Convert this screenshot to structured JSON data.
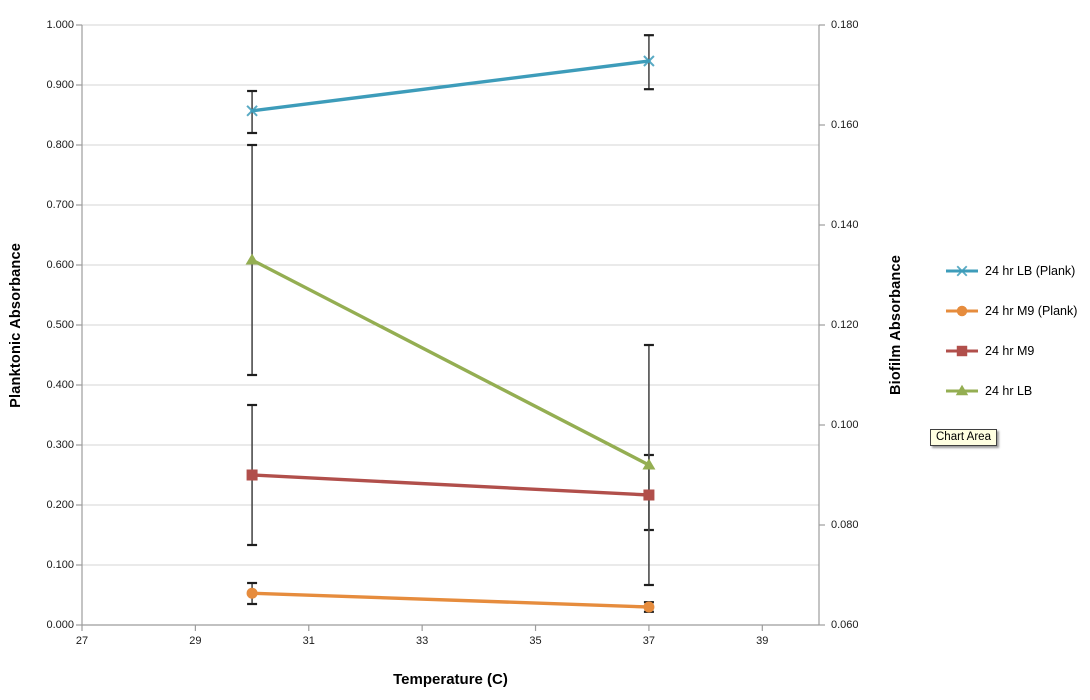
{
  "chart_data": {
    "type": "line",
    "x": [
      30,
      37
    ],
    "x_axis": {
      "label": "Temperature (C)",
      "min": 27,
      "max": 40,
      "tick_min": 27,
      "tick_max": 39,
      "tick_step": 2,
      "decimals": 0
    },
    "left_axis": {
      "label": "Planktonic Absorbance",
      "min": 0.0,
      "max": 1.0,
      "tick_step": 0.1,
      "decimals": 3
    },
    "right_axis": {
      "label": "Biofilm Absorbance",
      "min": 0.06,
      "max": 0.18,
      "tick_step": 0.02,
      "decimals": 3
    },
    "grid": "horizontal-only",
    "legend_position": "right",
    "series": [
      {
        "name": "24 hr LB (Plank)",
        "axis": "left",
        "marker": "x",
        "color": "#3d9cba",
        "values": [
          0.857,
          0.94
        ],
        "err_upper": [
          0.89,
          0.983
        ],
        "err_lower": [
          0.82,
          0.893
        ]
      },
      {
        "name": "24 hr M9 (Plank)",
        "axis": "left",
        "marker": "circle",
        "color": "#e68c3d",
        "values": [
          0.053,
          0.03
        ],
        "err_upper": [
          0.07,
          0.038
        ],
        "err_lower": [
          0.035,
          0.022
        ]
      },
      {
        "name": "24 hr M9",
        "axis": "right",
        "marker": "square",
        "color": "#b14f4b",
        "values": [
          0.09,
          0.086
        ],
        "err_upper": [
          0.104,
          0.094
        ],
        "err_lower": [
          0.076,
          0.079
        ]
      },
      {
        "name": "24 hr LB",
        "axis": "right",
        "marker": "triangle",
        "color": "#94ae52",
        "values": [
          0.133,
          0.092
        ],
        "err_upper": [
          0.156,
          0.116
        ],
        "err_lower": [
          0.11,
          0.068
        ]
      }
    ],
    "tooltip": {
      "label": "Chart Area"
    },
    "colors": {
      "gridline": "#d4d4d4",
      "axis_line": "#9c9c9c",
      "error_bar": "#4c4c4c",
      "error_cap": "#1e1e1e"
    }
  }
}
